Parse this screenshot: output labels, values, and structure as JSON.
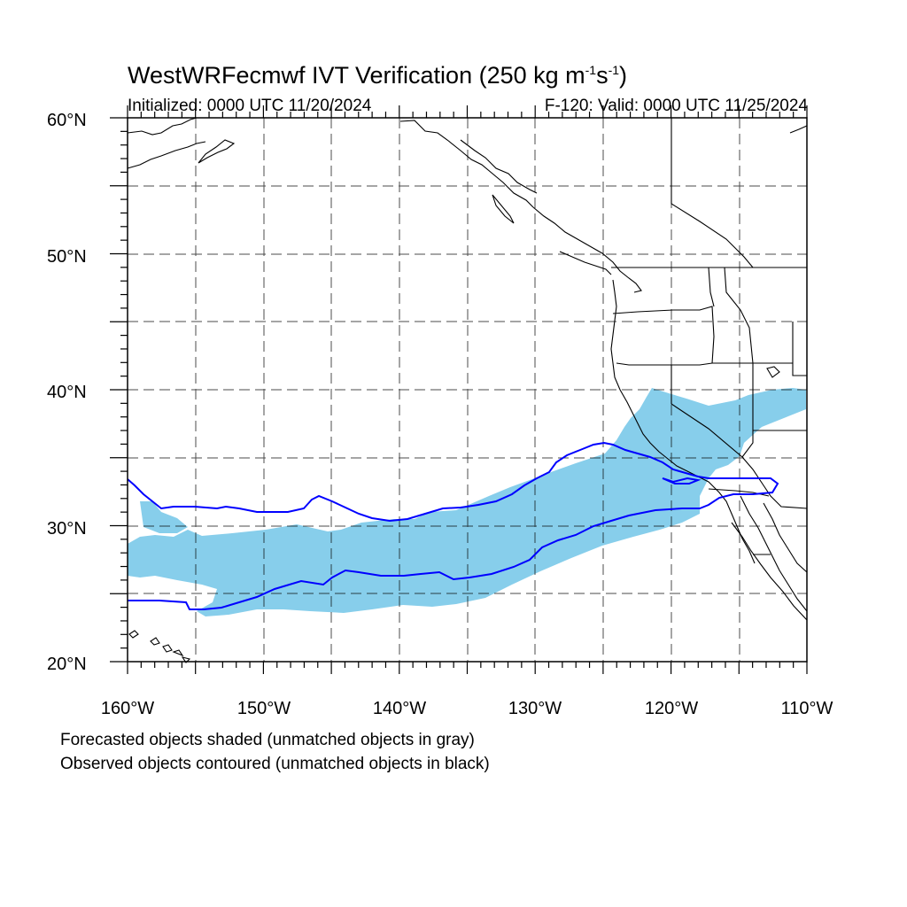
{
  "title": {
    "main": "WestWRFecmwf IVT Verification (250 kg m",
    "exp1": "-1",
    "mid": "s",
    "exp2": "-1",
    "close": ")"
  },
  "subtitle": {
    "initialized": "Initialized: 0000 UTC 11/20/2024",
    "valid": "F-120: Valid: 0000 UTC 11/25/2024"
  },
  "axes": {
    "lat_labels": [
      "60°N",
      "50°N",
      "40°N",
      "30°N",
      "20°N"
    ],
    "lon_labels": [
      "160°W",
      "150°W",
      "140°W",
      "130°W",
      "120°W",
      "110°W"
    ],
    "lat_range": [
      20,
      60
    ],
    "lon_range": [
      -160,
      -110
    ]
  },
  "footnotes": {
    "line1": "Forecasted objects shaded (unmatched objects in gray)",
    "line2": "Observed objects contoured (unmatched objects in black)"
  },
  "colors": {
    "forecast_fill": "#87ceeb",
    "observed_contour": "#0000ff",
    "coastline": "#000000",
    "grid": "#000000"
  }
}
